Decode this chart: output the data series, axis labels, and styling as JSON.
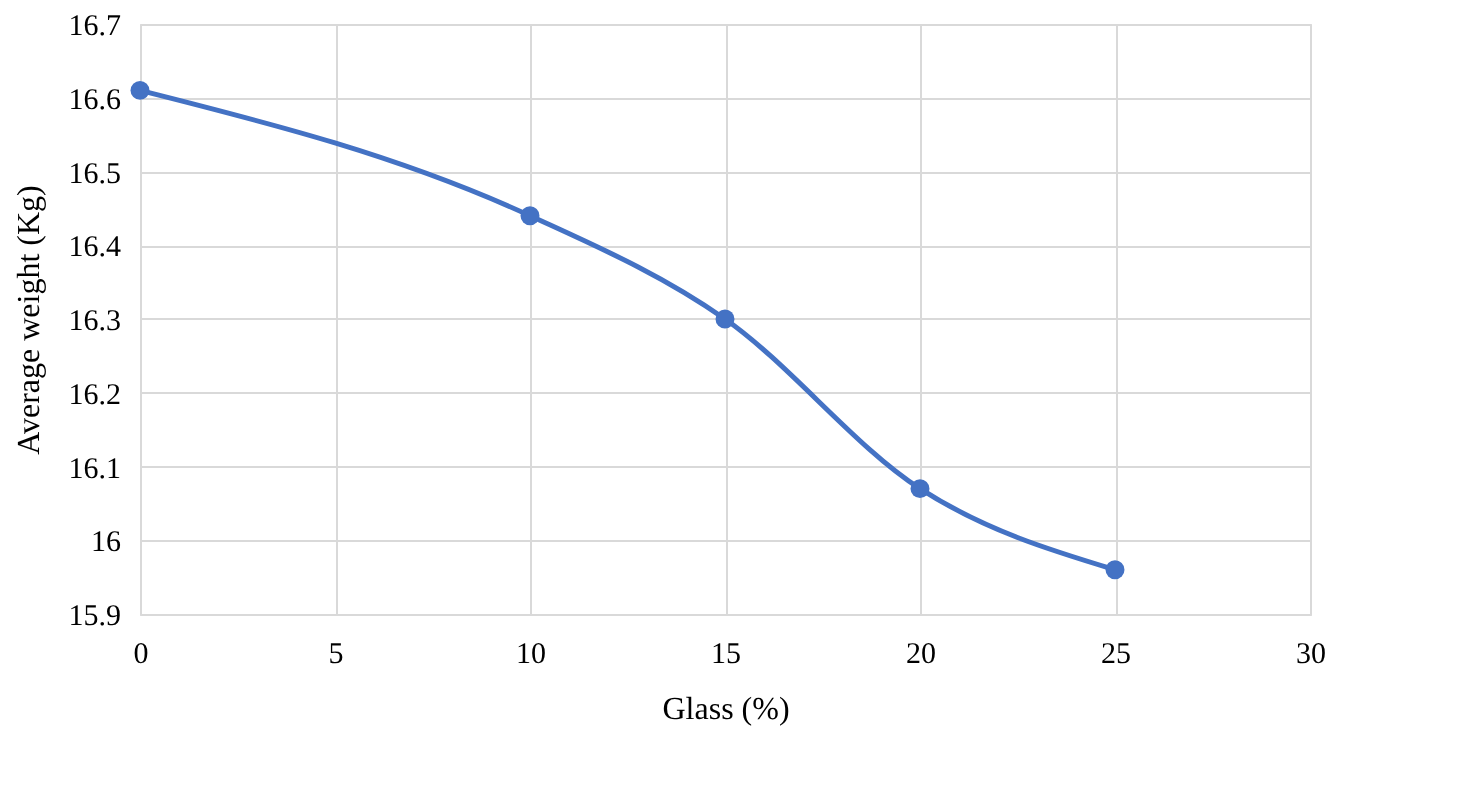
{
  "chart_data": {
    "type": "line",
    "xlabel": "Glass (%)",
    "ylabel": "Average weight (Kg)",
    "x": [
      0,
      10,
      15,
      20,
      25
    ],
    "series": [
      {
        "color": "#4472c4",
        "values": [
          16.61,
          16.44,
          16.3,
          16.07,
          15.96
        ]
      }
    ],
    "xlim": [
      0,
      30
    ],
    "xticks": [
      0,
      5,
      10,
      15,
      20,
      25,
      30
    ],
    "ylim": [
      15.9,
      16.7
    ],
    "yticks": [
      15.9,
      16,
      16.1,
      16.2,
      16.3,
      16.4,
      16.5,
      16.6,
      16.7
    ],
    "grid": true,
    "marker": "circle",
    "line_style": "solid",
    "legend": false
  }
}
